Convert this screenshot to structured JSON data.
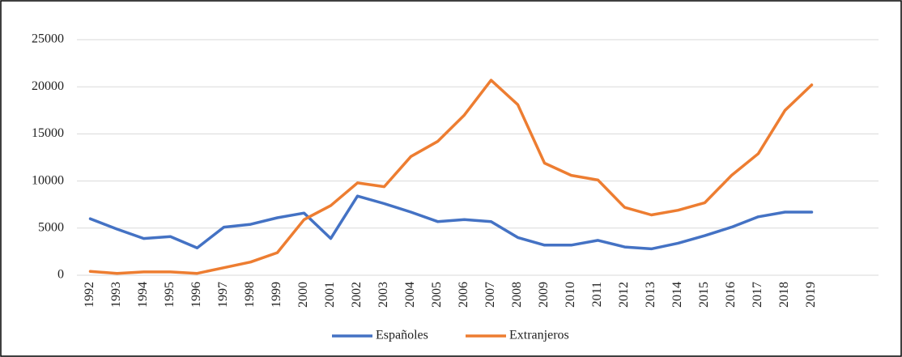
{
  "chart_data": {
    "type": "line",
    "categories": [
      "1992",
      "1993",
      "1994",
      "1995",
      "1996",
      "1997",
      "1998",
      "1999",
      "2000",
      "2001",
      "2002",
      "2003",
      "2004",
      "2005",
      "2006",
      "2007",
      "2008",
      "2009",
      "2010",
      "2011",
      "2012",
      "2013",
      "2014",
      "2015",
      "2016",
      "2017",
      "2018",
      "2019",
      null,
      null
    ],
    "series": [
      {
        "name": "Españoles",
        "color": "#4472c4",
        "values": [
          6000,
          4900,
          3900,
          4100,
          2900,
          5100,
          5400,
          6100,
          6600,
          3900,
          8400,
          7600,
          6700,
          5700,
          5900,
          5700,
          4000,
          3200,
          3200,
          3700,
          3000,
          2800,
          3400,
          4200,
          5100,
          6200,
          6700,
          6700,
          null,
          null
        ]
      },
      {
        "name": "Extranjeros",
        "color": "#ed7d31",
        "values": [
          400,
          200,
          350,
          350,
          200,
          800,
          1400,
          2400,
          5900,
          7400,
          9800,
          9400,
          12600,
          14200,
          17000,
          20700,
          18100,
          11900,
          10600,
          10100,
          7200,
          6400,
          6900,
          7700,
          10600,
          12900,
          17500,
          20200,
          null,
          null
        ]
      }
    ],
    "ylim": [
      0,
      25000
    ],
    "yticks": [
      0,
      5000,
      10000,
      15000,
      20000,
      25000
    ],
    "grid": true,
    "legend": "bottom"
  }
}
